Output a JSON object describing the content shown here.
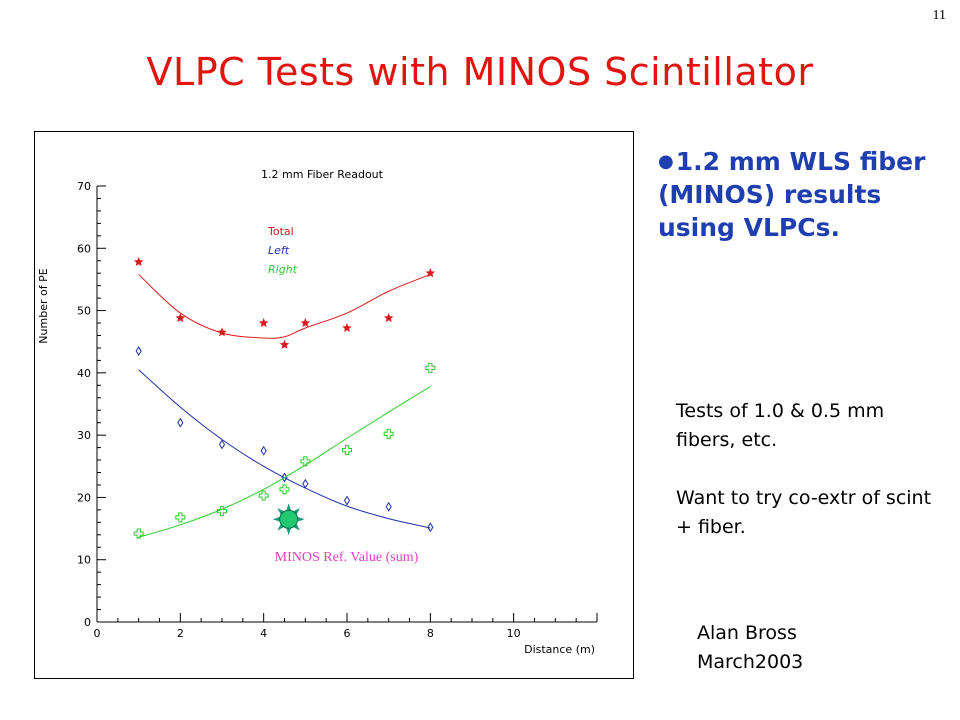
{
  "slide": {
    "number": "11",
    "title": "VLPC Tests with MINOS Scintillator",
    "bullet": "1.2 mm WLS fiber (MINOS) results using VLPCs.",
    "notes": [
      "Tests of 1.0 & 0.5 mm fibers, etc.",
      "Want to try co-extr of scint + fiber."
    ],
    "author": "Alan Bross",
    "date": "March2003"
  },
  "colors": {
    "title": "#e2140f",
    "bullet": "#1f3fb0",
    "total": "#d81c1c",
    "left": "#1f2fa8",
    "right": "#2ecc2e",
    "reference": "#e040c0",
    "reference_marker": "#1a9a7a"
  },
  "chart_data": {
    "type": "scatter",
    "title": "1.2 mm Fiber Readout",
    "xlabel": "Distance (m)",
    "ylabel": "Number of PE",
    "xlim": [
      0,
      12
    ],
    "ylim": [
      0,
      70
    ],
    "xticks": [
      0,
      2,
      4,
      6,
      8,
      10
    ],
    "yticks": [
      0,
      10,
      20,
      30,
      40,
      50,
      60,
      70
    ],
    "grid": false,
    "legend_position": "upper-middle",
    "series": [
      {
        "name": "Total",
        "marker": "star",
        "x": [
          1,
          2,
          3,
          4,
          4.5,
          5,
          6,
          7,
          8
        ],
        "y": [
          57.8,
          48.8,
          46.5,
          48.0,
          44.5,
          48.0,
          47.2,
          48.8,
          56.0
        ],
        "fit_y": [
          55.8,
          49.6,
          46.4,
          45.6,
          45.8,
          47.2,
          49.6,
          53.1,
          55.8
        ],
        "fit_x": [
          1,
          2,
          3,
          4,
          4.5,
          5,
          6,
          7,
          8
        ]
      },
      {
        "name": "Left",
        "marker": "diamond",
        "x": [
          1,
          2,
          3,
          4,
          4.5,
          5,
          6,
          7,
          8
        ],
        "y": [
          43.5,
          32.0,
          28.5,
          27.5,
          23.2,
          22.2,
          19.5,
          18.5,
          15.2
        ],
        "fit_x": [
          1,
          2,
          3,
          4,
          5,
          6,
          7,
          8
        ],
        "fit_y": [
          40.5,
          34.5,
          29.3,
          25.0,
          21.5,
          18.6,
          16.6,
          15.1
        ]
      },
      {
        "name": "Right",
        "marker": "cross",
        "x": [
          1,
          2,
          3,
          4,
          4.5,
          5,
          6,
          7,
          8
        ],
        "y": [
          14.2,
          16.8,
          17.8,
          20.3,
          21.3,
          25.8,
          27.6,
          30.2,
          40.8
        ],
        "fit_x": [
          1,
          2,
          3,
          4,
          5,
          6,
          7,
          8
        ],
        "fit_y": [
          13.6,
          15.6,
          18.1,
          21.3,
          25.2,
          29.5,
          33.7,
          37.8
        ]
      }
    ],
    "annotations": [
      {
        "label": "MINOS Ref. Value (sum)",
        "x": 4.6,
        "y": 16.5
      }
    ]
  }
}
